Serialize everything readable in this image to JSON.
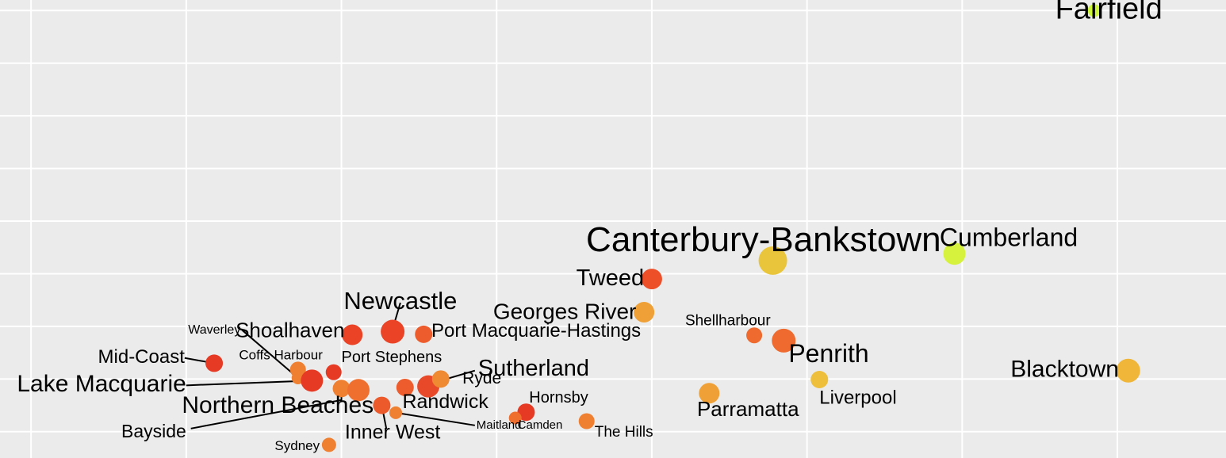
{
  "chart_data": {
    "type": "scatter",
    "title": "",
    "xlabel": "",
    "ylabel": "",
    "grid": true,
    "legend": "none",
    "xlim": [
      1,
      8.9
    ],
    "ylim": [
      0.5,
      9.2
    ],
    "x_gridlines": [
      1.2,
      2.2,
      3.2,
      4.2,
      5.2,
      6.2,
      7.2,
      8.2
    ],
    "y_gridlines": [
      1,
      2,
      3,
      4,
      5,
      6,
      7,
      8,
      9
    ],
    "points": [
      {
        "name": "Fairfield",
        "x": 8.05,
        "y": 9.0,
        "size": 8,
        "color": "#ccf53c"
      },
      {
        "name": "Canterbury-Bankstown",
        "x": 5.98,
        "y": 4.25,
        "size": 18,
        "color": "#e9c53c"
      },
      {
        "name": "Cumberland",
        "x": 7.15,
        "y": 4.38,
        "size": 14,
        "color": "#d6f23c"
      },
      {
        "name": "Tweed",
        "x": 5.2,
        "y": 3.9,
        "size": 13,
        "color": "#ed4f29"
      },
      {
        "name": "Georges River",
        "x": 5.15,
        "y": 3.27,
        "size": 13,
        "color": "#efa137"
      },
      {
        "name": "Newcastle",
        "x": 3.53,
        "y": 2.9,
        "size": 15,
        "color": "#ea4326"
      },
      {
        "name": "Shoalhaven",
        "x": 3.27,
        "y": 2.84,
        "size": 13,
        "color": "#ea4326"
      },
      {
        "name": "Port Macquarie-Hastings",
        "x": 3.73,
        "y": 2.85,
        "size": 11,
        "color": "#ed5c2c"
      },
      {
        "name": "Shellhardour",
        "x": 5.86,
        "y": 2.83,
        "size": 10,
        "color": "#ee6a2e"
      },
      {
        "name": "Shellhardour-2",
        "x": 6.05,
        "y": 2.73,
        "size": 15,
        "color": "#ee6a2e"
      },
      {
        "name": "Penrith",
        "x": 6.05,
        "y": 2.73,
        "size": 0,
        "color": "#ee6a2e"
      },
      {
        "name": "Liverpool",
        "x": 6.28,
        "y": 1.99,
        "size": 11,
        "color": "#eebf3a"
      },
      {
        "name": "Blacktown",
        "x": 8.27,
        "y": 2.16,
        "size": 15,
        "color": "#efb63a"
      },
      {
        "name": "Parramatta",
        "x": 5.57,
        "y": 1.73,
        "size": 13,
        "color": "#efa137"
      },
      {
        "name": "Mid-Coast",
        "x": 2.38,
        "y": 2.3,
        "size": 11,
        "color": "#e63a24"
      },
      {
        "name": "Coffs Harbour",
        "x": 2.92,
        "y": 2.18,
        "size": 10,
        "color": "#ef7f31"
      },
      {
        "name": "Port Stephens",
        "x": 3.15,
        "y": 2.13,
        "size": 10,
        "color": "#e63a24"
      },
      {
        "name": "Waverley",
        "x": 2.92,
        "y": 2.02,
        "size": 8,
        "color": "#ef7f31"
      },
      {
        "name": "Lake Macquarie",
        "x": 3.01,
        "y": 1.97,
        "size": 14,
        "color": "#e63a24"
      },
      {
        "name": "Northern Beaches-a",
        "x": 3.2,
        "y": 1.82,
        "size": 11,
        "color": "#ef7f31"
      },
      {
        "name": "Northern Beaches",
        "x": 3.31,
        "y": 1.79,
        "size": 14,
        "color": "#ef6f2e"
      },
      {
        "name": "Bayside",
        "x": 3.2,
        "y": 1.82,
        "size": 0,
        "color": "#ef7f31"
      },
      {
        "name": "Randwick-a",
        "x": 3.61,
        "y": 1.84,
        "size": 11,
        "color": "#ed5c2c"
      },
      {
        "name": "Sutherland",
        "x": 3.76,
        "y": 1.86,
        "size": 14,
        "color": "#e84a29"
      },
      {
        "name": "Ryde",
        "x": 3.84,
        "y": 2.0,
        "size": 11,
        "color": "#ef8932"
      },
      {
        "name": "Randwick",
        "x": 3.46,
        "y": 1.5,
        "size": 11,
        "color": "#ec5a2b"
      },
      {
        "name": "Inner West",
        "x": 3.46,
        "y": 1.5,
        "size": 0,
        "color": "#ec5a2b"
      },
      {
        "name": "Maitland",
        "x": 3.55,
        "y": 1.36,
        "size": 8,
        "color": "#ef7f31"
      },
      {
        "name": "Hornsby",
        "x": 4.39,
        "y": 1.37,
        "size": 11,
        "color": "#e63a24"
      },
      {
        "name": "Camden",
        "x": 4.32,
        "y": 1.26,
        "size": 8,
        "color": "#ef6f2e"
      },
      {
        "name": "The Hills",
        "x": 4.78,
        "y": 1.2,
        "size": 10,
        "color": "#ef7f31"
      },
      {
        "name": "Sydney",
        "x": 3.12,
        "y": 0.75,
        "size": 9,
        "color": "#ef7f31"
      }
    ],
    "labels": [
      {
        "text": "Fairfield",
        "fs": 38,
        "anchor": "end",
        "lx": 8.49,
        "ly": 9.0
      },
      {
        "text": "Canterbury-Bankstown",
        "fs": 44,
        "anchor": "middle",
        "lx": 5.92,
        "ly": 4.6
      },
      {
        "text": "Cumberland",
        "fs": 32,
        "anchor": "middle",
        "lx": 7.5,
        "ly": 4.65
      },
      {
        "text": "Tweed",
        "fs": 29,
        "anchor": "end",
        "lx": 5.15,
        "ly": 3.9
      },
      {
        "text": "Georges River",
        "fs": 28,
        "anchor": "end",
        "lx": 5.1,
        "ly": 3.25
      },
      {
        "text": "Newcastle",
        "fs": 31,
        "anchor": "middle",
        "lx": 3.58,
        "ly": 3.45,
        "line": [
          3.53,
          2.95
        ]
      },
      {
        "text": "Shoalhaven",
        "fs": 26,
        "anchor": "end",
        "lx": 3.22,
        "ly": 2.9
      },
      {
        "text": "Port Macquarie-Hastings",
        "fs": 24,
        "anchor": "start",
        "lx": 3.78,
        "ly": 2.9
      },
      {
        "text": "Shellharbour",
        "fs": 19,
        "anchor": "middle",
        "lx": 5.69,
        "ly": 3.1
      },
      {
        "text": "Penrith",
        "fs": 32,
        "anchor": "middle",
        "lx": 6.34,
        "ly": 2.45
      },
      {
        "text": "Liverpool",
        "fs": 24,
        "anchor": "start",
        "lx": 6.28,
        "ly": 1.63
      },
      {
        "text": "Blacktown",
        "fs": 30,
        "anchor": "end",
        "lx": 8.21,
        "ly": 2.16
      },
      {
        "text": "Parramatta",
        "fs": 26,
        "anchor": "middle",
        "lx": 5.82,
        "ly": 1.4
      },
      {
        "text": "Mid-Coast",
        "fs": 24,
        "anchor": "end",
        "lx": 2.19,
        "ly": 2.4,
        "line": [
          2.38,
          2.3
        ]
      },
      {
        "text": "Coffs Harbour",
        "fs": 17,
        "anchor": "start",
        "lx": 2.54,
        "ly": 2.44
      },
      {
        "text": "Port Stephens",
        "fs": 20,
        "anchor": "start",
        "lx": 3.2,
        "ly": 2.4
      },
      {
        "text": "Waverley",
        "fs": 16,
        "anchor": "end",
        "lx": 2.55,
        "ly": 2.93,
        "line": [
          2.92,
          2.02
        ],
        "from": [
          2.56,
          2.93
        ]
      },
      {
        "text": "Lake Macquarie",
        "fs": 30,
        "anchor": "end",
        "lx": 2.2,
        "ly": 1.88,
        "line": [
          3.01,
          1.97
        ]
      },
      {
        "text": "Northern Beaches",
        "fs": 30,
        "anchor": "middle",
        "lx": 2.79,
        "ly": 1.48,
        "line": [
          3.2,
          1.79
        ],
        "from": [
          3.2,
          1.56
        ]
      },
      {
        "text": "Bayside",
        "fs": 23,
        "anchor": "end",
        "lx": 2.2,
        "ly": 0.98,
        "line": [
          3.2,
          1.6
        ],
        "from": [
          2.23,
          1.06
        ]
      },
      {
        "text": "Randwick",
        "fs": 25,
        "anchor": "middle",
        "lx": 3.87,
        "ly": 1.55
      },
      {
        "text": "Sutherland",
        "fs": 29,
        "anchor": "start",
        "lx": 4.08,
        "ly": 2.18,
        "line": [
          3.76,
          1.9
        ],
        "from": [
          4.06,
          2.16
        ]
      },
      {
        "text": "Ryde",
        "fs": 21,
        "anchor": "start",
        "lx": 3.98,
        "ly": 2.0
      },
      {
        "text": "Inner West",
        "fs": 25,
        "anchor": "middle",
        "lx": 3.53,
        "ly": 0.97,
        "line": [
          3.46,
          1.5
        ],
        "from": [
          3.49,
          1.05
        ]
      },
      {
        "text": "Maitland",
        "fs": 15,
        "anchor": "start",
        "lx": 4.07,
        "ly": 1.12,
        "line": [
          3.55,
          1.36
        ],
        "from": [
          4.06,
          1.12
        ]
      },
      {
        "text": "Hornsby",
        "fs": 20,
        "anchor": "middle",
        "lx": 4.6,
        "ly": 1.63
      },
      {
        "text": "Camden",
        "fs": 15,
        "anchor": "middle",
        "lx": 4.48,
        "ly": 1.12
      },
      {
        "text": "The Hills",
        "fs": 19,
        "anchor": "middle",
        "lx": 5.02,
        "ly": 0.98
      },
      {
        "text": "Sydney",
        "fs": 17,
        "anchor": "end",
        "lx": 3.06,
        "ly": 0.72
      }
    ]
  }
}
